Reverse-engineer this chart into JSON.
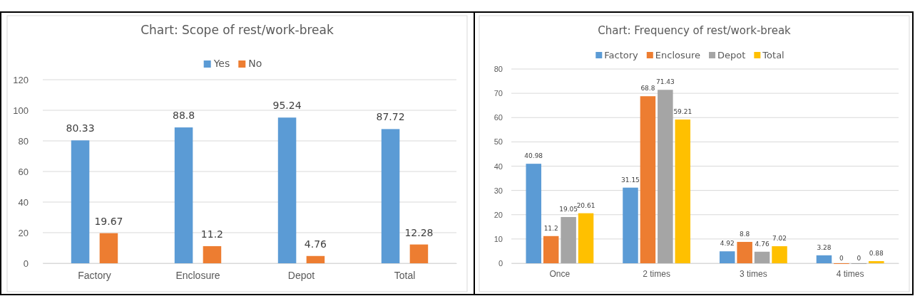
{
  "chart_data": [
    {
      "type": "bar",
      "title": "Chart: Scope of rest/work-break",
      "categories": [
        "Factory",
        "Enclosure",
        "Depot",
        "Total"
      ],
      "series": [
        {
          "name": "Yes",
          "color": "#5b9bd5",
          "values": [
            80.33,
            88.8,
            95.24,
            87.72
          ]
        },
        {
          "name": "No",
          "color": "#ed7d31",
          "values": [
            19.67,
            11.2,
            4.76,
            12.28
          ]
        }
      ],
      "ylim": [
        0,
        120
      ],
      "yticks": [
        0,
        20,
        40,
        60,
        80,
        100,
        120
      ],
      "grid": "y",
      "legend": "top",
      "data_labels": true
    },
    {
      "type": "bar",
      "title": "Chart: Frequency of rest/work-break",
      "categories": [
        "Once",
        "2 times",
        "3 times",
        "4 times"
      ],
      "series": [
        {
          "name": "Factory",
          "color": "#5b9bd5",
          "values": [
            40.98,
            31.15,
            4.92,
            3.28
          ]
        },
        {
          "name": "Enclosure",
          "color": "#ed7d31",
          "values": [
            11.2,
            68.8,
            8.8,
            0
          ]
        },
        {
          "name": "Depot",
          "color": "#a5a5a5",
          "values": [
            19.05,
            71.43,
            4.76,
            0
          ]
        },
        {
          "name": "Total",
          "color": "#ffc000",
          "values": [
            20.61,
            59.21,
            7.02,
            0.88
          ]
        }
      ],
      "ylim": [
        0,
        80
      ],
      "yticks": [
        0,
        10,
        20,
        30,
        40,
        50,
        60,
        70,
        80
      ],
      "grid": "y",
      "legend": "top",
      "data_labels": true
    }
  ]
}
